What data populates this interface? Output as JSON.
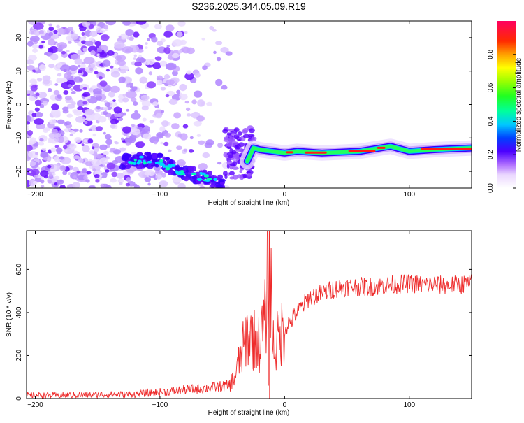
{
  "figure": {
    "title": "S236.2025.344.05.09.R19"
  },
  "chart_data": [
    {
      "type": "heatmap",
      "xlabel": "Height of straight line (km)",
      "ylabel": "Frequency (Hz)",
      "xlim": [
        -207,
        150
      ],
      "ylim": [
        -25,
        25
      ],
      "xticks": [
        -200,
        -100,
        0,
        100
      ],
      "yticks": [
        -20,
        -10,
        0,
        10,
        20
      ],
      "colorbar": {
        "label": "Normalized spectral amplitude",
        "range": [
          0,
          1
        ],
        "ticks": [
          0.0,
          0.2,
          0.4,
          0.6,
          0.8
        ]
      },
      "ridge": {
        "description_x_start": -30,
        "points": [
          [
            -30,
            -17
          ],
          [
            -25,
            -13
          ],
          [
            -20,
            -13.5
          ],
          [
            -10,
            -14
          ],
          [
            0,
            -14.5
          ],
          [
            10,
            -14
          ],
          [
            30,
            -14.5
          ],
          [
            60,
            -14
          ],
          [
            85,
            -12.5
          ],
          [
            100,
            -14
          ],
          [
            120,
            -13.5
          ],
          [
            150,
            -13
          ]
        ]
      },
      "low_band": {
        "points": [
          [
            -130,
            -17
          ],
          [
            -115,
            -16.5
          ],
          [
            -100,
            -17
          ],
          [
            -90,
            -19
          ],
          [
            -75,
            -21
          ],
          [
            -60,
            -22
          ],
          [
            -50,
            -24
          ]
        ]
      },
      "grid": false
    },
    {
      "type": "line",
      "xlabel": "Height of straight line (km)",
      "ylabel": "SNR (10 * v/v)",
      "xlim": [
        -207,
        150
      ],
      "ylim": [
        0,
        780
      ],
      "xticks": [
        -200,
        -100,
        0,
        100
      ],
      "yticks": [
        0,
        200,
        400,
        600
      ],
      "series": [
        {
          "color": "#ee2b2b",
          "x": [
            -207,
            -180,
            -150,
            -120,
            -100,
            -80,
            -60,
            -45,
            -40,
            -35,
            -30,
            -25,
            -20,
            -15,
            -12,
            -10,
            -8,
            -5,
            0,
            5,
            10,
            20,
            30,
            40,
            50,
            60,
            70,
            80,
            90,
            100,
            110,
            120,
            130,
            140,
            150
          ],
          "y": [
            15,
            15,
            18,
            20,
            30,
            40,
            50,
            60,
            100,
            200,
            300,
            280,
            250,
            380,
            780,
            300,
            230,
            280,
            330,
            360,
            400,
            470,
            490,
            510,
            520,
            520,
            520,
            525,
            530,
            535,
            530,
            530,
            525,
            530,
            535
          ]
        }
      ],
      "grid": false
    }
  ]
}
